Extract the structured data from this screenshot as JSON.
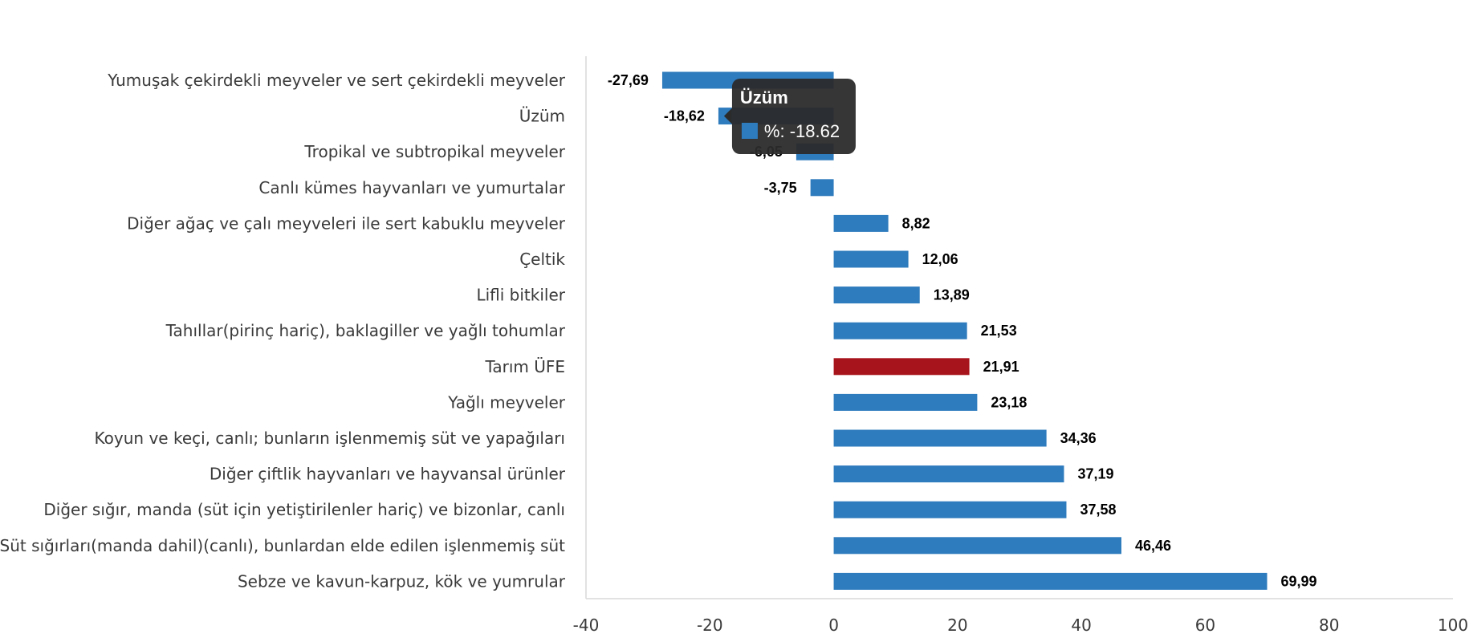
{
  "chart_data": {
    "type": "bar",
    "orientation": "horizontal",
    "categories": [
      "Yumuşak çekirdekli meyveler ve sert çekirdekli meyveler",
      "Üzüm",
      "Tropikal ve subtropikal meyveler",
      "Canlı kümes hayvanları ve yumurtalar",
      "Diğer ağaç ve çalı meyveleri ile sert kabuklu meyveler",
      "Çeltik",
      "Lifli bitkiler",
      "Tahıllar(pirinç hariç), baklagiller ve yağlı tohumlar",
      "Tarım ÜFE",
      "Yağlı meyveler",
      "Koyun ve keçi, canlı; bunların işlenmemiş süt ve yapağıları",
      "Diğer çiftlik hayvanları ve hayvansal ürünler",
      "Diğer sığır, manda (süt için yetiştirilenler hariç) ve bizonlar, canlı",
      "Süt sığırları(manda dahil)(canlı), bunlardan elde edilen işlenmemiş süt",
      "Sebze ve kavun-karpuz, kök ve yumrular"
    ],
    "values": [
      -27.69,
      -18.62,
      -6.05,
      -3.75,
      8.82,
      12.06,
      13.89,
      21.53,
      21.91,
      23.18,
      34.36,
      37.19,
      37.58,
      46.46,
      69.99
    ],
    "value_labels": [
      "-27,69",
      "-18,62",
      "-6,05",
      "-3,75",
      "8,82",
      "12,06",
      "13,89",
      "21,53",
      "21,91",
      "23,18",
      "34,36",
      "37,19",
      "37,58",
      "46,46",
      "69,99"
    ],
    "highlight_category": "Tarım ÜFE",
    "colors": {
      "bar": "#2e7bbd",
      "highlight": "#a8141c",
      "axis": "#d9d9d9",
      "tooltip_bg": "#2b2b2b"
    },
    "xlim": [
      -40,
      100
    ],
    "xticks": [
      -40,
      -20,
      0,
      20,
      40,
      60,
      80,
      100
    ],
    "xtick_labels": [
      "-40",
      "-20",
      "0",
      "20",
      "40",
      "60",
      "80",
      "100"
    ],
    "grid": false,
    "legend": "none",
    "title": "",
    "xlabel": "",
    "ylabel": ""
  },
  "tooltip": {
    "visible": true,
    "category_index": 1,
    "title": "Üzüm",
    "text": "%: -18.62"
  }
}
